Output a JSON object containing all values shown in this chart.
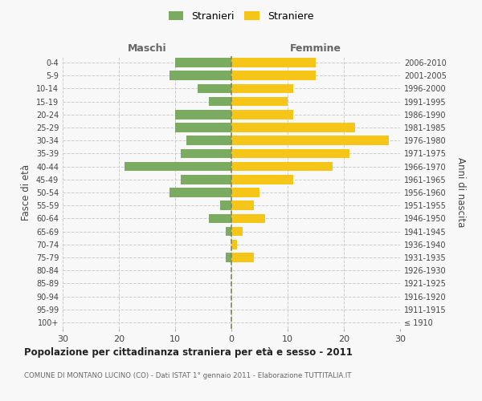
{
  "age_groups": [
    "100+",
    "95-99",
    "90-94",
    "85-89",
    "80-84",
    "75-79",
    "70-74",
    "65-69",
    "60-64",
    "55-59",
    "50-54",
    "45-49",
    "40-44",
    "35-39",
    "30-34",
    "25-29",
    "20-24",
    "15-19",
    "10-14",
    "5-9",
    "0-4"
  ],
  "birth_years": [
    "≤ 1910",
    "1911-1915",
    "1916-1920",
    "1921-1925",
    "1926-1930",
    "1931-1935",
    "1936-1940",
    "1941-1945",
    "1946-1950",
    "1951-1955",
    "1956-1960",
    "1961-1965",
    "1966-1970",
    "1971-1975",
    "1976-1980",
    "1981-1985",
    "1986-1990",
    "1991-1995",
    "1996-2000",
    "2001-2005",
    "2006-2010"
  ],
  "males": [
    0,
    0,
    0,
    0,
    0,
    1,
    0,
    1,
    4,
    2,
    11,
    9,
    19,
    9,
    8,
    10,
    10,
    4,
    6,
    11,
    10
  ],
  "females": [
    0,
    0,
    0,
    0,
    0,
    4,
    1,
    2,
    6,
    4,
    5,
    11,
    18,
    21,
    28,
    22,
    11,
    10,
    11,
    15,
    15
  ],
  "male_color": "#7aab60",
  "female_color": "#f5c518",
  "grid_color": "#cccccc",
  "center_line_color": "#888855",
  "xlim": 30,
  "title": "Popolazione per cittadinanza straniera per età e sesso - 2011",
  "subtitle": "COMUNE DI MONTANO LUCINO (CO) - Dati ISTAT 1° gennaio 2011 - Elaborazione TUTTITALIA.IT",
  "ylabel_left": "Fasce di età",
  "ylabel_right": "Anni di nascita",
  "header_left": "Maschi",
  "header_right": "Femmine",
  "legend_stranieri": "Stranieri",
  "legend_straniere": "Straniere",
  "background_color": "#f8f8f8"
}
